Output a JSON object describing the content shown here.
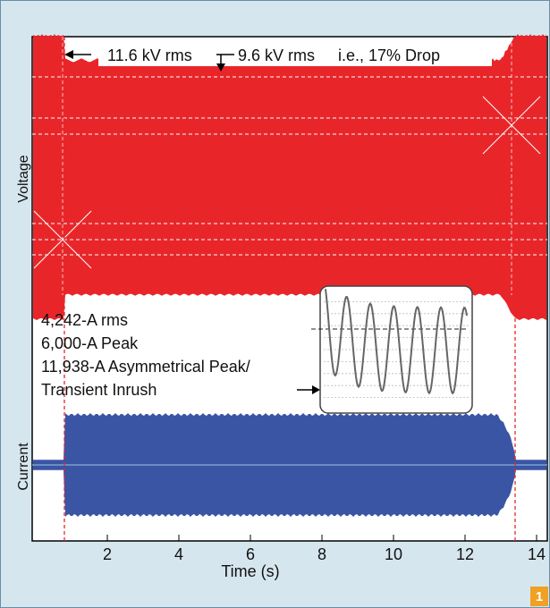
{
  "figure_badge": "1",
  "chart_data": {
    "type": "line",
    "xlabel": "Time (s)",
    "ylabel_top": "Voltage",
    "ylabel_bottom": "Current",
    "xlim": [
      0,
      14
    ],
    "x_ticks": [
      2,
      4,
      6,
      8,
      10,
      12,
      14
    ],
    "grid": "dashed horizontal lines in voltage band",
    "event_markers_s": [
      0.8,
      13.4
    ],
    "series": [
      {
        "name": "Voltage",
        "color": "#e8262a",
        "envelope_pre": 1.0,
        "envelope_during": 0.83,
        "envelope_post": 1.0
      },
      {
        "name": "Current",
        "color": "#3b55a5",
        "envelope_pre": 0.1,
        "envelope_during": 1.0,
        "envelope_post": 0.1
      }
    ],
    "annotations": {
      "voltage_before": "11.6 kV rms",
      "voltage_during": "9.6 kV rms",
      "drop": "i.e., 17% Drop",
      "current_lines": [
        "4,242-A rms",
        "6,000-A Peak",
        "11,938-A Asymmetrical Peak/",
        "Transient Inrush"
      ]
    },
    "inset": {
      "description_color": "#666666",
      "cycles": 6
    }
  }
}
